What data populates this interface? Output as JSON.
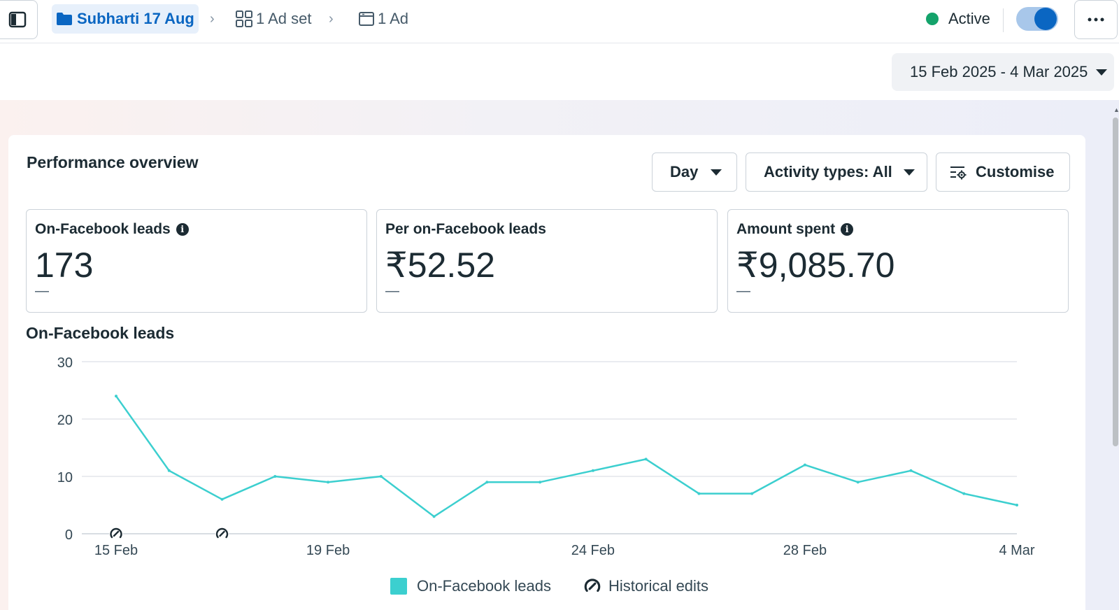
{
  "breadcrumb": {
    "campaign": "Subharti 17 Aug",
    "adset": "1 Ad set",
    "ad": "1 Ad"
  },
  "status": {
    "label": "Active",
    "toggle_on": true
  },
  "date_range": "15 Feb 2025 - 4 Mar 2025",
  "performance": {
    "title": "Performance overview",
    "day_button": "Day",
    "activity_button": "Activity types: All",
    "customise_button": "Customise"
  },
  "metrics": [
    {
      "label": "On-Facebook leads",
      "value": "173",
      "delta": "—",
      "has_info": true
    },
    {
      "label": "Per on-Facebook leads",
      "value": "₹52.52",
      "delta": "—",
      "has_info": false
    },
    {
      "label": "Amount spent",
      "value": "₹9,085.70",
      "delta": "—",
      "has_info": true
    }
  ],
  "colors": {
    "accent": "#0a66c2",
    "series": "#3ccfcf",
    "active": "#14a36b"
  },
  "icons": [
    "sidebar-toggle-icon",
    "folder-icon",
    "grid-icon",
    "ad-icon",
    "more-icon",
    "customise-icon",
    "info-icon",
    "historical-edit-icon"
  ],
  "chart_data": {
    "type": "line",
    "title": "On-Facebook leads",
    "x": [
      "15 Feb",
      "16 Feb",
      "17 Feb",
      "18 Feb",
      "19 Feb",
      "20 Feb",
      "21 Feb",
      "22 Feb",
      "23 Feb",
      "24 Feb",
      "25 Feb",
      "26 Feb",
      "27 Feb",
      "28 Feb",
      "1 Mar",
      "2 Mar",
      "3 Mar",
      "4 Mar"
    ],
    "x_tick_labels": [
      "15 Feb",
      "19 Feb",
      "24 Feb",
      "28 Feb",
      "4 Mar"
    ],
    "y_ticks": [
      0,
      10,
      20,
      30
    ],
    "ylim": [
      0,
      30
    ],
    "series": [
      {
        "name": "On-Facebook leads",
        "values": [
          24,
          11,
          6,
          10,
          9,
          10,
          3,
          9,
          9,
          11,
          13,
          7,
          7,
          12,
          9,
          11,
          7,
          5
        ]
      }
    ],
    "historical_edits": [
      "15 Feb",
      "17 Feb"
    ],
    "legend": [
      "On-Facebook leads",
      "Historical edits"
    ],
    "legend_position": "bottom",
    "grid": true
  }
}
